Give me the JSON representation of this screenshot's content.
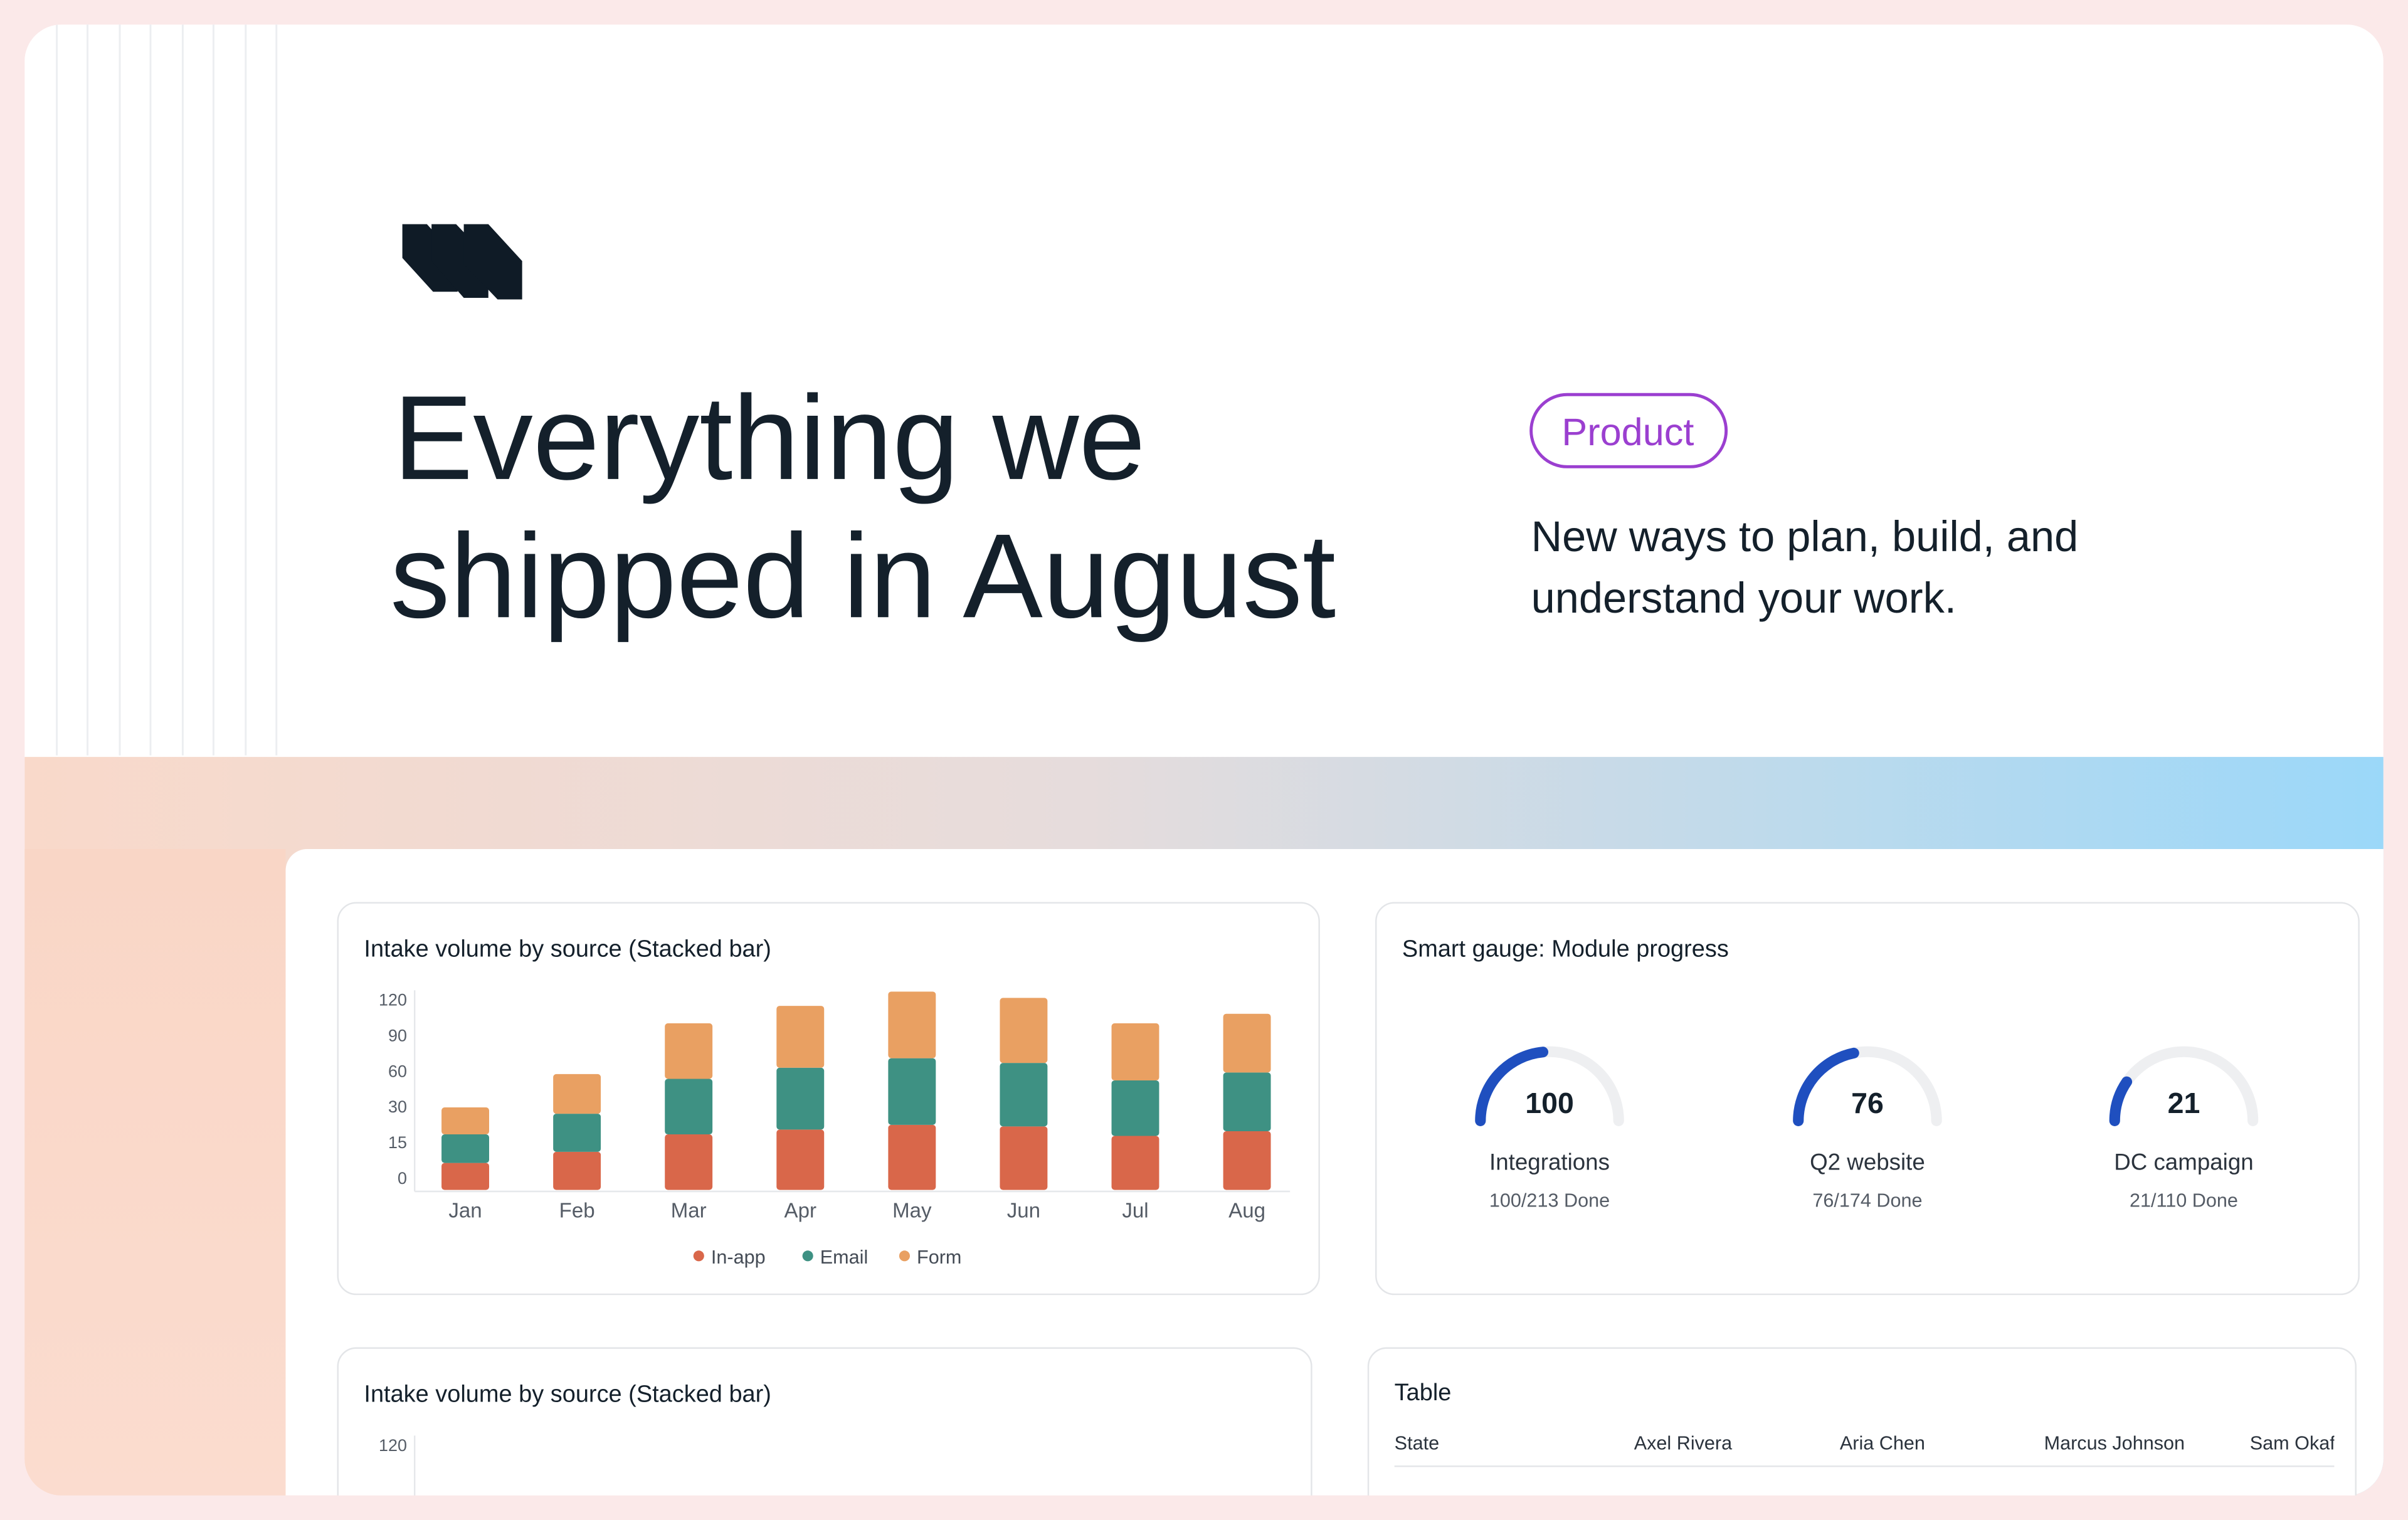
{
  "header": {
    "title_lines": [
      "Everything we",
      "shipped in August"
    ],
    "tag": "Product",
    "subtitle_lines": [
      "New ways to plan, build, and",
      "understand your work."
    ]
  },
  "chart_data": [
    {
      "type": "bar",
      "stacked": true,
      "title": "Intake volume by source (Stacked bar)",
      "categories": [
        "Jan",
        "Feb",
        "Mar",
        "Apr",
        "May",
        "Jun",
        "Jul",
        "Aug"
      ],
      "series": [
        {
          "name": "In-app",
          "color": "#d9674a",
          "values": [
            17,
            24,
            35,
            38,
            41,
            40,
            34,
            37
          ]
        },
        {
          "name": "Email",
          "color": "#3e9183",
          "values": [
            18,
            24,
            35,
            39,
            42,
            40,
            35,
            37
          ]
        },
        {
          "name": "Form",
          "color": "#e9a062",
          "values": [
            17,
            25,
            35,
            39,
            42,
            41,
            36,
            37
          ]
        }
      ],
      "ylim": [
        0,
        130
      ],
      "yticks": [
        0,
        15,
        30,
        60,
        90,
        120
      ],
      "legend": "bottom"
    },
    {
      "type": "bar",
      "title": "Intake volume by source (Stacked bar)",
      "ylim": [
        0,
        120
      ],
      "yticks": [
        120
      ]
    }
  ],
  "gauge_card": {
    "title": "Smart gauge: Module progress",
    "gauges": [
      {
        "value": 100,
        "total": 213,
        "name": "Integrations",
        "detail": "100/213 Done"
      },
      {
        "value": 76,
        "total": 174,
        "name": "Q2 website",
        "detail": "76/174 Done"
      },
      {
        "value": 21,
        "total": 110,
        "name": "DC campaign",
        "detail": "21/110 Done"
      }
    ]
  },
  "table": {
    "title": "Table",
    "columns": [
      "State",
      "Axel Rivera",
      "Aria Chen",
      "Marcus Johnson",
      "Sam Okafor"
    ]
  }
}
